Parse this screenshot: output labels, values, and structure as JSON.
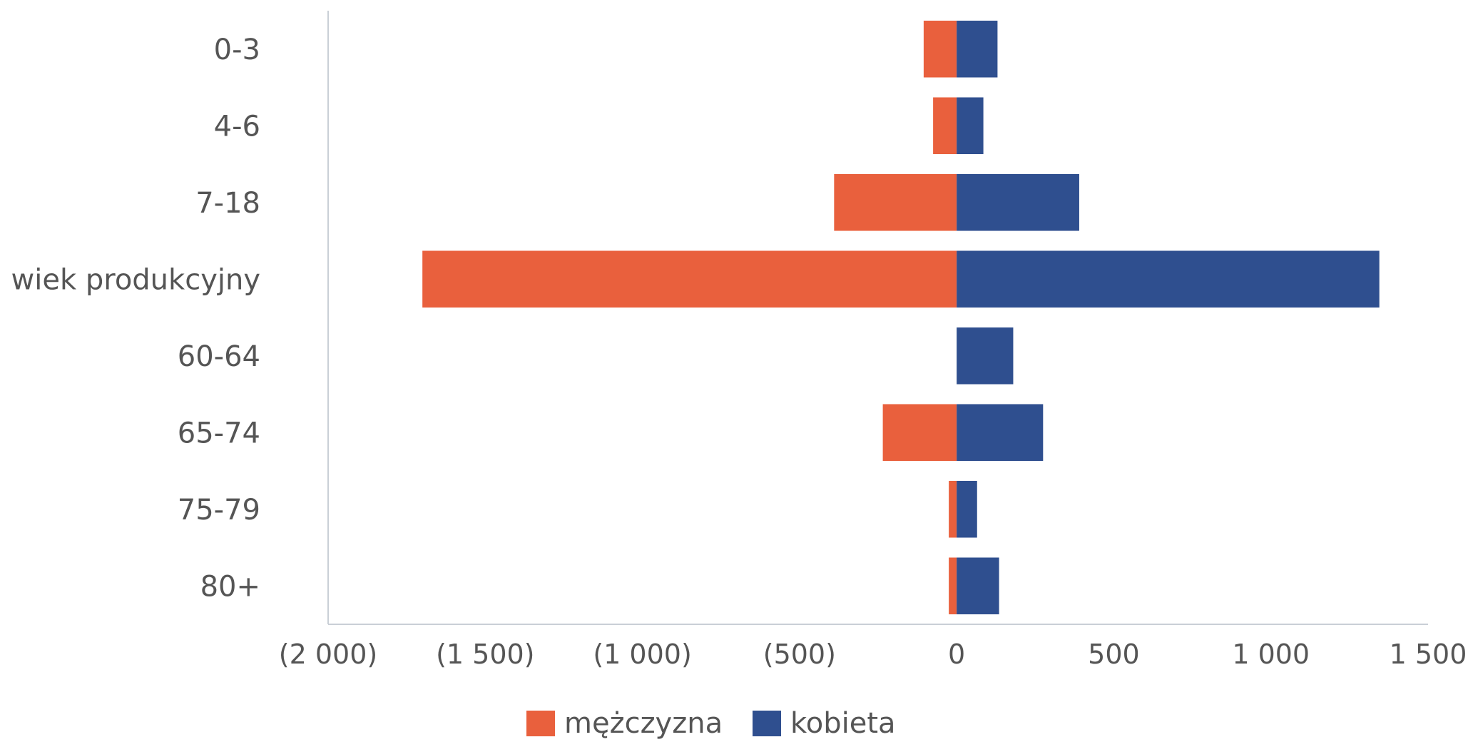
{
  "chart_data": {
    "type": "bar",
    "orientation": "horizontal",
    "stacked": "diverging",
    "categories": [
      "0-3",
      "4-6",
      "7-18",
      "wiek produkcyjny",
      "60-64",
      "65-74",
      "75-79",
      "80+"
    ],
    "series": [
      {
        "name": "mężczyzna",
        "color": "#e9603d",
        "values": [
          -105,
          -75,
          -390,
          -1700,
          0,
          -235,
          -25,
          -25
        ]
      },
      {
        "name": "kobieta",
        "color": "#2f4f8f",
        "values": [
          130,
          85,
          390,
          1345,
          180,
          275,
          65,
          135
        ]
      }
    ],
    "xlim": [
      -2000,
      1500
    ],
    "xticks": [
      -2000,
      -1500,
      -1000,
      -500,
      0,
      500,
      1000,
      1500
    ],
    "xtick_labels": [
      "(2 000)",
      "(1 500)",
      "(1 000)",
      "(500)",
      "0",
      "500",
      "1 000",
      "1 500"
    ],
    "grid": false,
    "legend": {
      "position": "bottom",
      "entries": [
        "mężczyzna",
        "kobieta"
      ]
    }
  }
}
